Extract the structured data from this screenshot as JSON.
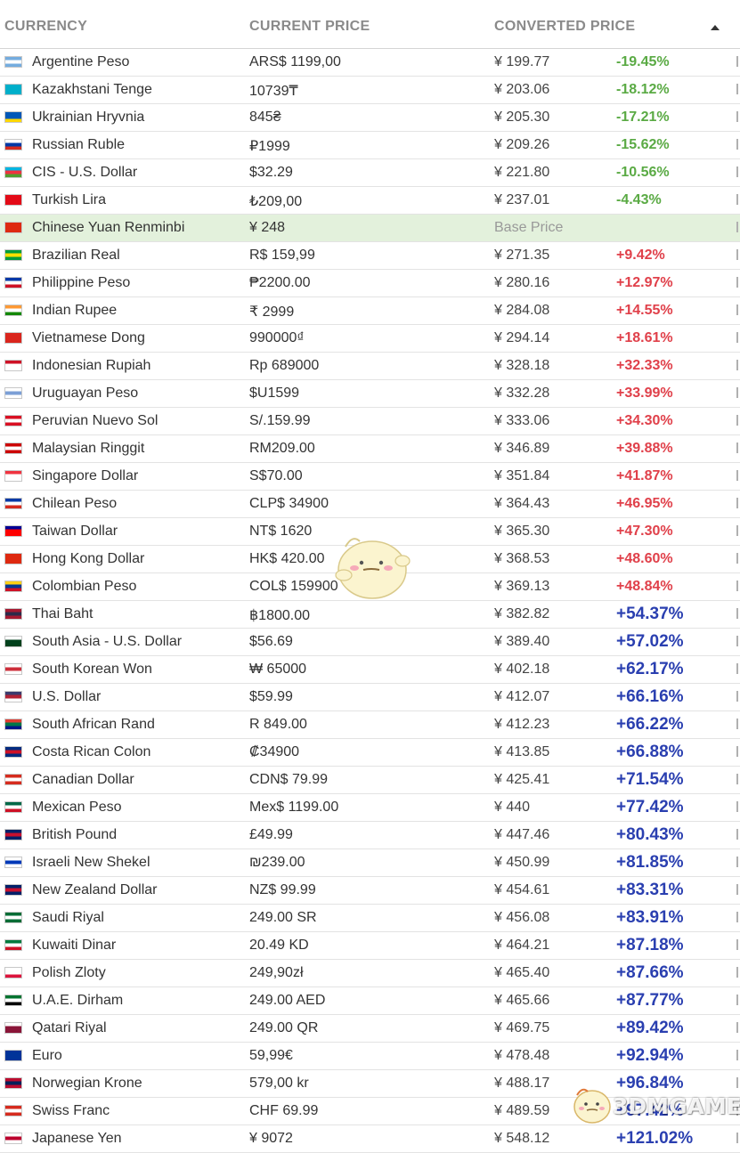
{
  "header": {
    "currency": "CURRENCY",
    "current_price": "CURRENT PRICE",
    "converted_price": "CONVERTED PRICE",
    "sort_icon": "sort-ascending-icon"
  },
  "rows": [
    {
      "name": "Argentine Peso",
      "price": "ARS$ 1199,00",
      "converted": "¥ 199.77",
      "pct": "-19.45%",
      "kind": "neg",
      "flag": [
        "#74acdf",
        "#ffffff",
        "#74acdf"
      ]
    },
    {
      "name": "Kazakhstani Tenge",
      "price": "10739₸",
      "converted": "¥ 203.06",
      "pct": "-18.12%",
      "kind": "neg",
      "flag": [
        "#00afca",
        "#00afca",
        "#00afca"
      ]
    },
    {
      "name": "Ukrainian Hryvnia",
      "price": "845₴",
      "converted": "¥ 205.30",
      "pct": "-17.21%",
      "kind": "neg",
      "flag": [
        "#0057b7",
        "#0057b7",
        "#ffd700"
      ]
    },
    {
      "name": "Russian Ruble",
      "price": "₽1999",
      "converted": "¥ 209.26",
      "pct": "-15.62%",
      "kind": "neg",
      "flag": [
        "#ffffff",
        "#0039a6",
        "#d52b1e"
      ]
    },
    {
      "name": "CIS - U.S. Dollar",
      "price": "$32.29",
      "converted": "¥ 221.80",
      "pct": "-10.56%",
      "kind": "neg",
      "flag": [
        "#00b5e2",
        "#ef3340",
        "#509e2f"
      ]
    },
    {
      "name": "Turkish Lira",
      "price": "₺209,00",
      "converted": "¥ 237.01",
      "pct": "-4.43%",
      "kind": "neg",
      "flag": [
        "#e30a17",
        "#e30a17",
        "#e30a17"
      ]
    },
    {
      "name": "Chinese Yuan Renminbi",
      "price": "¥ 248",
      "converted": "Base Price",
      "pct": "",
      "kind": "base",
      "flag": [
        "#de2910",
        "#de2910",
        "#de2910"
      ]
    },
    {
      "name": "Brazilian Real",
      "price": "R$ 159,99",
      "converted": "¥ 271.35",
      "pct": "+9.42%",
      "kind": "pos-mid",
      "flag": [
        "#009c3b",
        "#ffdf00",
        "#009c3b"
      ]
    },
    {
      "name": "Philippine Peso",
      "price": "₱2200.00",
      "converted": "¥ 280.16",
      "pct": "+12.97%",
      "kind": "pos-mid",
      "flag": [
        "#0038a8",
        "#ffffff",
        "#ce1126"
      ]
    },
    {
      "name": "Indian Rupee",
      "price": "₹ 2999",
      "converted": "¥ 284.08",
      "pct": "+14.55%",
      "kind": "pos-mid",
      "flag": [
        "#ff9933",
        "#ffffff",
        "#138808"
      ]
    },
    {
      "name": "Vietnamese Dong",
      "price": "990000₫",
      "converted": "¥ 294.14",
      "pct": "+18.61%",
      "kind": "pos-mid",
      "flag": [
        "#da251d",
        "#da251d",
        "#da251d"
      ]
    },
    {
      "name": "Indonesian Rupiah",
      "price": "Rp 689000",
      "converted": "¥ 328.18",
      "pct": "+32.33%",
      "kind": "pos-mid",
      "flag": [
        "#ce1126",
        "#ffffff",
        "#ffffff"
      ]
    },
    {
      "name": "Uruguayan Peso",
      "price": "$U1599",
      "converted": "¥ 332.28",
      "pct": "+33.99%",
      "kind": "pos-mid",
      "flag": [
        "#ffffff",
        "#7b9fd6",
        "#ffffff"
      ]
    },
    {
      "name": "Peruvian Nuevo Sol",
      "price": "S/.159.99",
      "converted": "¥ 333.06",
      "pct": "+34.30%",
      "kind": "pos-mid",
      "flag": [
        "#d91023",
        "#ffffff",
        "#d91023"
      ]
    },
    {
      "name": "Malaysian Ringgit",
      "price": "RM209.00",
      "converted": "¥ 346.89",
      "pct": "+39.88%",
      "kind": "pos-mid",
      "flag": [
        "#cc0001",
        "#ffffff",
        "#cc0001"
      ]
    },
    {
      "name": "Singapore Dollar",
      "price": "S$70.00",
      "converted": "¥ 351.84",
      "pct": "+41.87%",
      "kind": "pos-mid",
      "flag": [
        "#ef3340",
        "#ffffff",
        "#ffffff"
      ]
    },
    {
      "name": "Chilean Peso",
      "price": "CLP$ 34900",
      "converted": "¥ 364.43",
      "pct": "+46.95%",
      "kind": "pos-mid",
      "flag": [
        "#0039a6",
        "#ffffff",
        "#d52b1e"
      ]
    },
    {
      "name": "Taiwan Dollar",
      "price": "NT$ 1620",
      "converted": "¥ 365.30",
      "pct": "+47.30%",
      "kind": "pos-mid",
      "flag": [
        "#000095",
        "#fe0000",
        "#fe0000"
      ]
    },
    {
      "name": "Hong Kong Dollar",
      "price": "HK$ 420.00",
      "converted": "¥ 368.53",
      "pct": "+48.60%",
      "kind": "pos-mid",
      "flag": [
        "#de2910",
        "#de2910",
        "#de2910"
      ]
    },
    {
      "name": "Colombian Peso",
      "price": "COL$ 159900",
      "converted": "¥ 369.13",
      "pct": "+48.84%",
      "kind": "pos-mid",
      "flag": [
        "#fcd116",
        "#003893",
        "#ce1126"
      ]
    },
    {
      "name": "Thai Baht",
      "price": "฿1800.00",
      "converted": "¥ 382.82",
      "pct": "+54.37%",
      "kind": "pos-high",
      "flag": [
        "#a51931",
        "#2d2a4a",
        "#a51931"
      ]
    },
    {
      "name": "South Asia - U.S. Dollar",
      "price": "$56.69",
      "converted": "¥ 389.40",
      "pct": "+57.02%",
      "kind": "pos-high",
      "flag": [
        "#ffffff",
        "#01411c",
        "#01411c"
      ]
    },
    {
      "name": "South Korean Won",
      "price": "₩ 65000",
      "converted": "¥ 402.18",
      "pct": "+62.17%",
      "kind": "pos-high",
      "flag": [
        "#ffffff",
        "#cd2e3a",
        "#ffffff"
      ]
    },
    {
      "name": "U.S. Dollar",
      "price": "$59.99",
      "converted": "¥ 412.07",
      "pct": "+66.16%",
      "kind": "pos-high",
      "flag": [
        "#3c3b6e",
        "#b22234",
        "#ffffff"
      ]
    },
    {
      "name": "South African Rand",
      "price": "R 849.00",
      "converted": "¥ 412.23",
      "pct": "+66.22%",
      "kind": "pos-high",
      "flag": [
        "#e03c31",
        "#007749",
        "#001489"
      ]
    },
    {
      "name": "Costa Rican Colon",
      "price": "₡34900",
      "converted": "¥ 413.85",
      "pct": "+66.88%",
      "kind": "pos-high",
      "flag": [
        "#002b7f",
        "#ce1126",
        "#002b7f"
      ]
    },
    {
      "name": "Canadian Dollar",
      "price": "CDN$ 79.99",
      "converted": "¥ 425.41",
      "pct": "+71.54%",
      "kind": "pos-high",
      "flag": [
        "#d52b1e",
        "#ffffff",
        "#d52b1e"
      ]
    },
    {
      "name": "Mexican Peso",
      "price": "Mex$ 1199.00",
      "converted": "¥ 440",
      "pct": "+77.42%",
      "kind": "pos-high",
      "flag": [
        "#006847",
        "#ffffff",
        "#ce1126"
      ]
    },
    {
      "name": "British Pound",
      "price": "£49.99",
      "converted": "¥ 447.46",
      "pct": "+80.43%",
      "kind": "pos-high",
      "flag": [
        "#012169",
        "#c8102e",
        "#012169"
      ]
    },
    {
      "name": "Israeli New Shekel",
      "price": "₪239.00",
      "converted": "¥ 450.99",
      "pct": "+81.85%",
      "kind": "pos-high",
      "flag": [
        "#ffffff",
        "#0038b8",
        "#ffffff"
      ]
    },
    {
      "name": "New Zealand Dollar",
      "price": "NZ$ 99.99",
      "converted": "¥ 454.61",
      "pct": "+83.31%",
      "kind": "pos-high",
      "flag": [
        "#012169",
        "#c8102e",
        "#012169"
      ]
    },
    {
      "name": "Saudi Riyal",
      "price": "249.00 SR",
      "converted": "¥ 456.08",
      "pct": "+83.91%",
      "kind": "pos-high",
      "flag": [
        "#006c35",
        "#ffffff",
        "#006c35"
      ]
    },
    {
      "name": "Kuwaiti Dinar",
      "price": "20.49 KD",
      "converted": "¥ 464.21",
      "pct": "+87.18%",
      "kind": "pos-high",
      "flag": [
        "#007a3d",
        "#ffffff",
        "#ce1126"
      ]
    },
    {
      "name": "Polish Zloty",
      "price": "249,90zł",
      "converted": "¥ 465.40",
      "pct": "+87.66%",
      "kind": "pos-high",
      "flag": [
        "#ffffff",
        "#ffffff",
        "#dc143c"
      ]
    },
    {
      "name": "U.A.E. Dirham",
      "price": "249.00 AED",
      "converted": "¥ 465.66",
      "pct": "+87.77%",
      "kind": "pos-high",
      "flag": [
        "#00732f",
        "#ffffff",
        "#000000"
      ]
    },
    {
      "name": "Qatari Riyal",
      "price": "249.00 QR",
      "converted": "¥ 469.75",
      "pct": "+89.42%",
      "kind": "pos-high",
      "flag": [
        "#ffffff",
        "#8a1538",
        "#8a1538"
      ]
    },
    {
      "name": "Euro",
      "price": "59,99€",
      "converted": "¥ 478.48",
      "pct": "+92.94%",
      "kind": "pos-high",
      "flag": [
        "#003399",
        "#003399",
        "#003399"
      ]
    },
    {
      "name": "Norwegian Krone",
      "price": "579,00 kr",
      "converted": "¥ 488.17",
      "pct": "+96.84%",
      "kind": "pos-high",
      "flag": [
        "#ba0c2f",
        "#00205b",
        "#ba0c2f"
      ]
    },
    {
      "name": "Swiss Franc",
      "price": "CHF 69.99",
      "converted": "¥ 489.59",
      "pct": "+97.42%",
      "kind": "pos-high",
      "flag": [
        "#d52b1e",
        "#ffffff",
        "#d52b1e"
      ]
    },
    {
      "name": "Japanese Yen",
      "price": "¥ 9072",
      "converted": "¥ 548.12",
      "pct": "+121.02%",
      "kind": "pos-high",
      "flag": [
        "#ffffff",
        "#bc002d",
        "#ffffff"
      ]
    }
  ],
  "overlays": {
    "mascot": "mascot-sticker",
    "watermark_text": "3DMGAME"
  },
  "colors": {
    "negative": "#5aaa44",
    "positive_mid": "#e0404a",
    "positive_high": "#2a3fb0",
    "base_row_bg": "#e3f1dc"
  }
}
